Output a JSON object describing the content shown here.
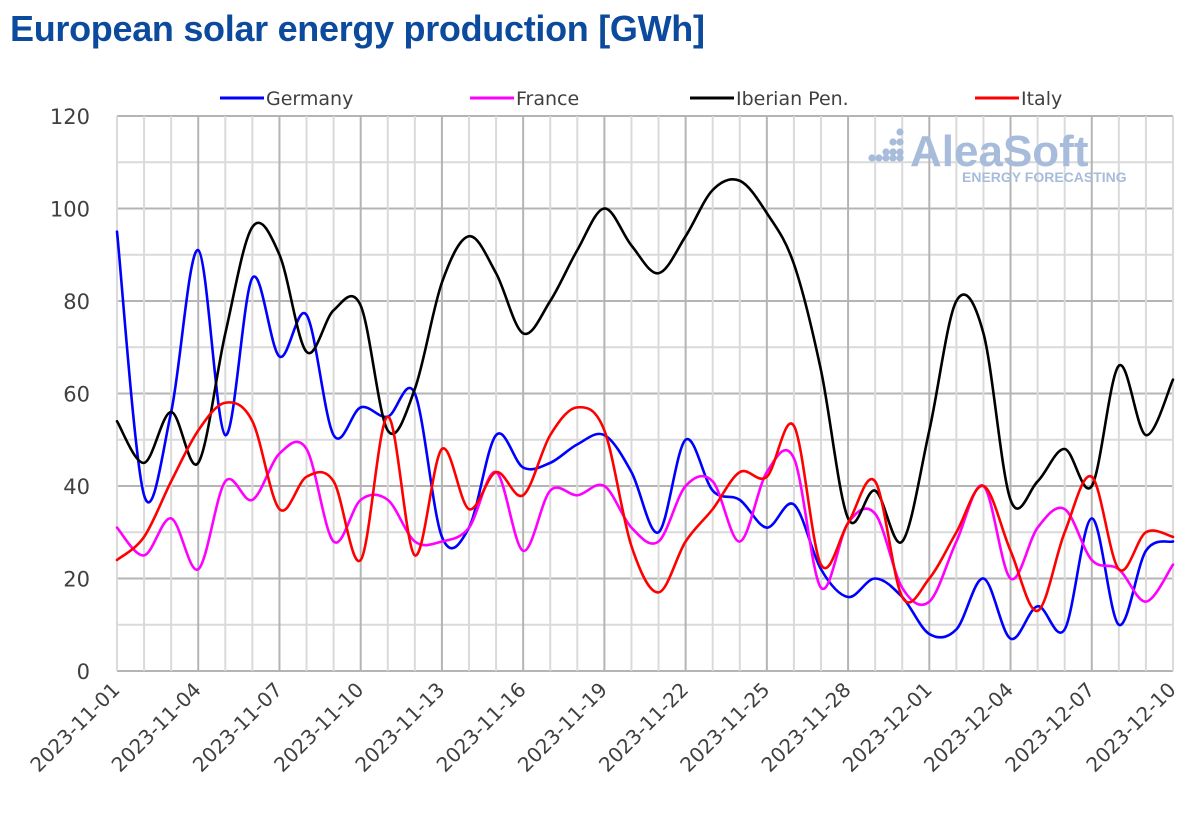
{
  "chart_data": {
    "type": "line",
    "title": "European solar energy production [GWh]",
    "xlabel": "",
    "ylabel": "",
    "ylim": [
      0,
      120
    ],
    "yticks": [
      0,
      20,
      40,
      60,
      80,
      100,
      120
    ],
    "grid": true,
    "legend_position": "top",
    "x": [
      "2023-11-01",
      "2023-11-02",
      "2023-11-03",
      "2023-11-04",
      "2023-11-05",
      "2023-11-06",
      "2023-11-07",
      "2023-11-08",
      "2023-11-09",
      "2023-11-10",
      "2023-11-11",
      "2023-11-12",
      "2023-11-13",
      "2023-11-14",
      "2023-11-15",
      "2023-11-16",
      "2023-11-17",
      "2023-11-18",
      "2023-11-19",
      "2023-11-20",
      "2023-11-21",
      "2023-11-22",
      "2023-11-23",
      "2023-11-24",
      "2023-11-25",
      "2023-11-26",
      "2023-11-27",
      "2023-11-28",
      "2023-11-29",
      "2023-11-30",
      "2023-12-01",
      "2023-12-02",
      "2023-12-03",
      "2023-12-04",
      "2023-12-05",
      "2023-12-06",
      "2023-12-07",
      "2023-12-08",
      "2023-12-09",
      "2023-12-10"
    ],
    "xtick_labels": [
      "2023-11-01",
      "2023-11-04",
      "2023-11-07",
      "2023-11-10",
      "2023-11-13",
      "2023-11-16",
      "2023-11-19",
      "2023-11-22",
      "2023-11-25",
      "2023-11-28",
      "2023-12-01",
      "2023-12-04",
      "2023-12-07",
      "2023-12-10"
    ],
    "series": [
      {
        "name": "Germany",
        "color": "#0000ff",
        "values": [
          95,
          38,
          56,
          91,
          51,
          85,
          68,
          77,
          51,
          57,
          55,
          60,
          29,
          31,
          51,
          44,
          45,
          49,
          51,
          43,
          30,
          50,
          39,
          37,
          31,
          36,
          22,
          16,
          20,
          16,
          8,
          9,
          20,
          7,
          14,
          9,
          33,
          10,
          26,
          28
        ]
      },
      {
        "name": "France",
        "color": "#ff00ff",
        "values": [
          31,
          25,
          33,
          22,
          41,
          37,
          47,
          48,
          28,
          37,
          37,
          28,
          28,
          31,
          43,
          26,
          39,
          38,
          40,
          31,
          28,
          40,
          41,
          28,
          43,
          46,
          18,
          32,
          34,
          18,
          15,
          28,
          40,
          20,
          31,
          35,
          24,
          22,
          15,
          23
        ]
      },
      {
        "name": "Iberian Pen.",
        "color": "#000000",
        "values": [
          54,
          45,
          56,
          45,
          73,
          96,
          90,
          69,
          78,
          79,
          52,
          61,
          84,
          94,
          86,
          73,
          80,
          91,
          100,
          92,
          86,
          94,
          104,
          106,
          99,
          88,
          65,
          33,
          39,
          28,
          52,
          80,
          73,
          37,
          41,
          48,
          40,
          66,
          51,
          63
        ]
      },
      {
        "name": "Italy",
        "color": "#ff0000",
        "values": [
          24,
          29,
          41,
          52,
          58,
          54,
          35,
          42,
          41,
          24,
          55,
          25,
          48,
          35,
          43,
          38,
          51,
          57,
          52,
          27,
          17,
          28,
          35,
          43,
          42,
          53,
          23,
          32,
          41,
          16,
          20,
          30,
          40,
          26,
          13,
          30,
          42,
          22,
          30,
          29
        ]
      }
    ]
  },
  "watermark": {
    "brand": "AleaSoft",
    "tagline": "ENERGY FORECASTING"
  }
}
